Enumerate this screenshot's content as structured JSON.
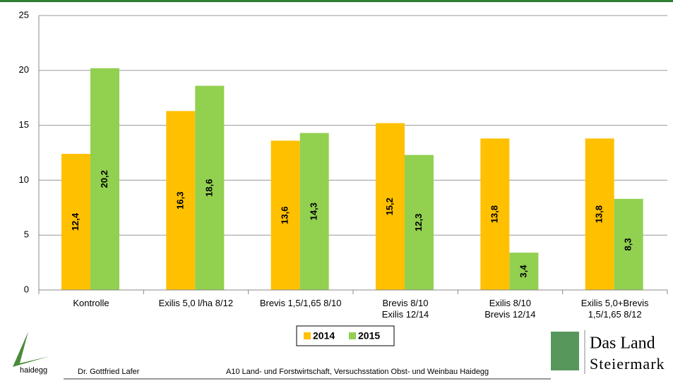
{
  "chart_data": {
    "type": "bar",
    "categories": [
      "Kontrolle",
      "Exilis 5,0 l/ha 8/12",
      "Brevis 1,5/1,65 8/10",
      "Brevis 8/10\nExilis 12/14",
      "Exilis 8/10\nBrevis 12/14",
      "Exilis 5,0+Brevis\n1,5/1,65 8/12"
    ],
    "series": [
      {
        "name": "2014",
        "color": "#FFC000",
        "values": [
          12.4,
          16.3,
          13.6,
          15.2,
          13.8,
          13.8
        ],
        "value_labels": [
          "12,4",
          "16,3",
          "13,6",
          "15,2",
          "13,8",
          "13,8"
        ]
      },
      {
        "name": "2015",
        "color": "#92D050",
        "values": [
          20.2,
          18.6,
          14.3,
          12.3,
          3.4,
          8.3
        ],
        "value_labels": [
          "20,2",
          "18,6",
          "14,3",
          "12,3",
          "3,4",
          "8,3"
        ]
      }
    ],
    "ylim": [
      0,
      25
    ],
    "yticks": [
      0,
      5,
      10,
      15,
      20,
      25
    ],
    "grid": true,
    "legend": "bottom"
  },
  "footer": {
    "logo_text": "haidegg",
    "author": "Dr. Gottfried Lafer",
    "institution": "A10 Land- und Forstwirtschaft, Versuchsstation Obst- und Weinbau Haidegg",
    "brand_line1": "Das Land",
    "brand_line2": "Steiermark"
  }
}
